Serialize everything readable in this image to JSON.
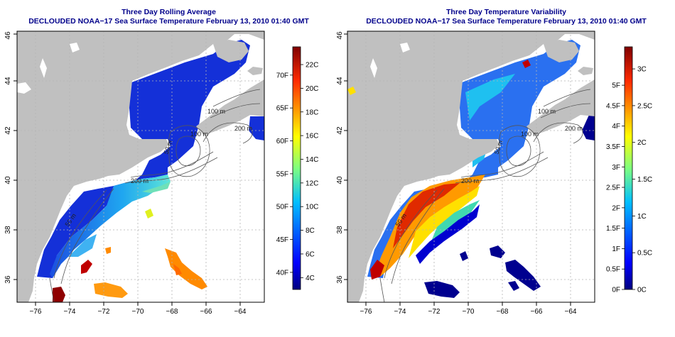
{
  "panels": [
    {
      "title": "Three Day Rolling Average",
      "subtitle": "DECLOUDED NOAA−17 Sea Surface Temperature February 13, 2010 01:40 GMT",
      "lon_ticks": [
        "−76",
        "−74",
        "−72",
        "−70",
        "−68",
        "−66",
        "−64"
      ],
      "lat_ticks": [
        "36",
        "38",
        "40",
        "42",
        "44",
        "46"
      ],
      "colorbar": {
        "type": "temperature",
        "range_c": [
          3,
          23.5
        ],
        "celsius_ticks": [
          "4C",
          "6C",
          "8C",
          "10C",
          "12C",
          "14C",
          "16C",
          "18C",
          "20C",
          "22C"
        ],
        "fahrenheit_ticks": [
          "40F",
          "45F",
          "50F",
          "55F",
          "60F",
          "65F",
          "70F"
        ]
      },
      "contour_labels": [
        "100 m",
        "200 m",
        "100 m",
        "50 m",
        "200 m",
        "50 m"
      ]
    },
    {
      "title": "Three Day Temperature Variability",
      "subtitle": "DECLOUDED NOAA−17 Sea Surface Temperature February 13, 2010 01:40 GMT",
      "lon_ticks": [
        "−76",
        "−74",
        "−72",
        "−70",
        "−68",
        "−66",
        "−64"
      ],
      "lat_ticks": [
        "36",
        "38",
        "40",
        "42",
        "44",
        "46"
      ],
      "colorbar": {
        "type": "variability",
        "range_c": [
          0,
          3.3
        ],
        "celsius_ticks": [
          "0C",
          "0.5C",
          "1C",
          "1.5C",
          "2C",
          "2.5C",
          "3C"
        ],
        "fahrenheit_ticks": [
          "0F",
          "0.5F",
          "1F",
          "1.5F",
          "2F",
          "2.5F",
          "3F",
          "3.5F",
          "4F",
          "4.5F",
          "5F"
        ]
      },
      "contour_labels": [
        "100 m",
        "200 m",
        "100 m",
        "50 m",
        "200 m",
        "50 m"
      ]
    }
  ],
  "colors": {
    "land": "#c0c0c0",
    "title": "#00008b",
    "grid": "#b4b4b4",
    "contour": "#555555"
  }
}
